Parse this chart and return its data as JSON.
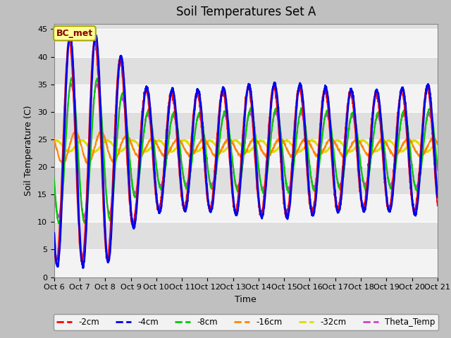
{
  "title": "Soil Temperatures Set A",
  "xlabel": "Time",
  "ylabel": "Soil Temperature (C)",
  "ylim": [
    0,
    46
  ],
  "yticks": [
    0,
    5,
    10,
    15,
    20,
    25,
    30,
    35,
    40,
    45
  ],
  "xlim": [
    0,
    360
  ],
  "annotation_text": "BC_met",
  "annotation_bg": "#ffff99",
  "annotation_border": "#aaa800",
  "series_colors": {
    "-2cm": "#ff0000",
    "-4cm": "#0000ee",
    "-8cm": "#00cc00",
    "-16cm": "#ff8800",
    "-32cm": "#dddd00",
    "Theta_Temp": "#cc44cc"
  },
  "series_lw": {
    "-2cm": 1.2,
    "-4cm": 2.0,
    "-8cm": 1.5,
    "-16cm": 1.5,
    "-32cm": 1.5,
    "Theta_Temp": 1.5
  },
  "xtick_labels": [
    "Oct 6",
    "Oct 7",
    "Oct 8",
    "Oct 9",
    "Oct 10",
    "Oct 11",
    "Oct 12",
    "Oct 13",
    "Oct 14",
    "Oct 15",
    "Oct 16",
    "Oct 17",
    "Oct 18",
    "Oct 19",
    "Oct 20",
    "Oct 21"
  ],
  "xtick_positions": [
    0,
    24,
    48,
    72,
    96,
    120,
    144,
    168,
    192,
    216,
    240,
    264,
    288,
    312,
    336,
    360
  ],
  "n_points": 2161,
  "title_fontsize": 12,
  "label_fontsize": 9,
  "tick_fontsize": 8
}
